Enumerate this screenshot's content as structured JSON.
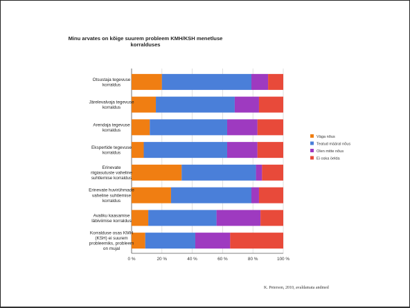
{
  "chart_data": {
    "type": "bar",
    "orientation": "horizontal",
    "stacked": "percent",
    "title": "Minu arvates on kõige suurem probleem KMH/KSH menetluse korralduses",
    "categories": [
      "Otsustaja tegevuse korraldus",
      "Järelevalvaja tegevuse korraldus",
      "Arendaja tegevuse korraldus",
      "Ekspertide tegevuse korraldus",
      "Erinevate riigiasutuste vaheline suhtlemise korraldus",
      "Erinevate huvirühmade vaheline suhtlemise korraldus",
      "Avaliku kaasamise läbiviimise korraldus",
      "Korralduse osas KMH (KSH) ei suurem probleemiks, probleem on mujal"
    ],
    "series": [
      {
        "name": "Väga nõus",
        "color": "#f07e12",
        "values": [
          20,
          16,
          12,
          8,
          33,
          26,
          11,
          9
        ]
      },
      {
        "name": "Teatud määral nõus",
        "color": "#4a7fd9",
        "values": [
          59,
          52,
          51,
          55,
          49,
          53,
          45,
          33
        ]
      },
      {
        "name": "Olen mitte nõus",
        "color": "#9e3ac0",
        "values": [
          11,
          16,
          20,
          20,
          4,
          5,
          29,
          23
        ]
      },
      {
        "name": "Ei oska öelda",
        "color": "#e84a3a",
        "values": [
          10,
          16,
          17,
          17,
          14,
          16,
          15,
          35
        ]
      }
    ],
    "xlim": [
      0,
      100
    ],
    "xticks": [
      "0 %",
      "20 %",
      "40 %",
      "60 %",
      "80 %",
      "100 %"
    ],
    "legend": "right",
    "grid": true
  },
  "source_note": "K. Peterson, 2010, avaldamata andmed"
}
